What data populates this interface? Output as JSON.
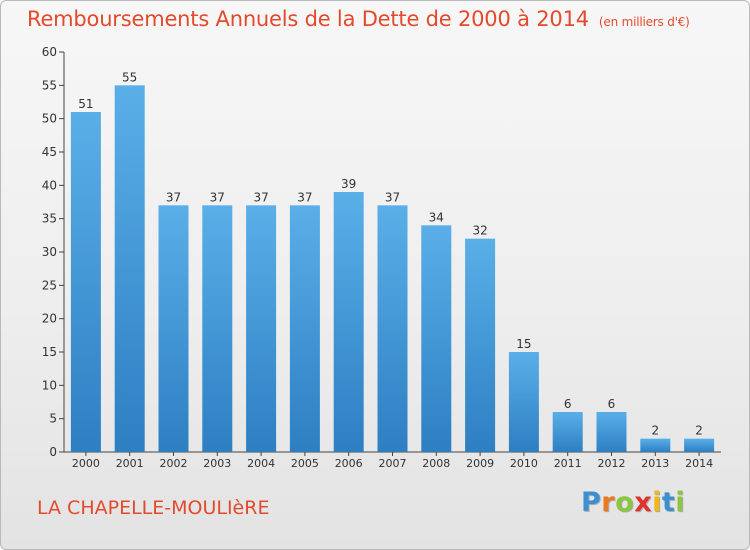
{
  "title": "Remboursements Annuels de la Dette de 2000 à 2014",
  "unit": "(en milliers d'€)",
  "commune": "LA CHAPELLE-MOULIèRE",
  "logo": {
    "letters": [
      "P",
      "r",
      "o",
      "x",
      "i",
      "t",
      "i"
    ],
    "colors": [
      "#3c8fd0",
      "#e97a23",
      "#8cc63f",
      "#e0332b",
      "#f3b619",
      "#3c8fd0",
      "#8cc63f"
    ]
  },
  "chart_data": {
    "type": "bar",
    "title": "Remboursements Annuels de la Dette de 2000 à 2014",
    "xlabel": "",
    "ylabel": "",
    "categories": [
      "2000",
      "2001",
      "2002",
      "2003",
      "2004",
      "2005",
      "2006",
      "2007",
      "2008",
      "2009",
      "2010",
      "2011",
      "2012",
      "2013",
      "2014"
    ],
    "values": [
      51,
      55,
      37,
      37,
      37,
      37,
      39,
      37,
      34,
      32,
      15,
      6,
      6,
      2,
      2
    ],
    "ylim": [
      0,
      60
    ],
    "yticks": [
      0,
      5,
      10,
      15,
      20,
      25,
      30,
      35,
      40,
      45,
      50,
      55,
      60
    ],
    "grid": false,
    "bar_color_top": "#5aafe8",
    "bar_color_bottom": "#2d7fc2"
  }
}
